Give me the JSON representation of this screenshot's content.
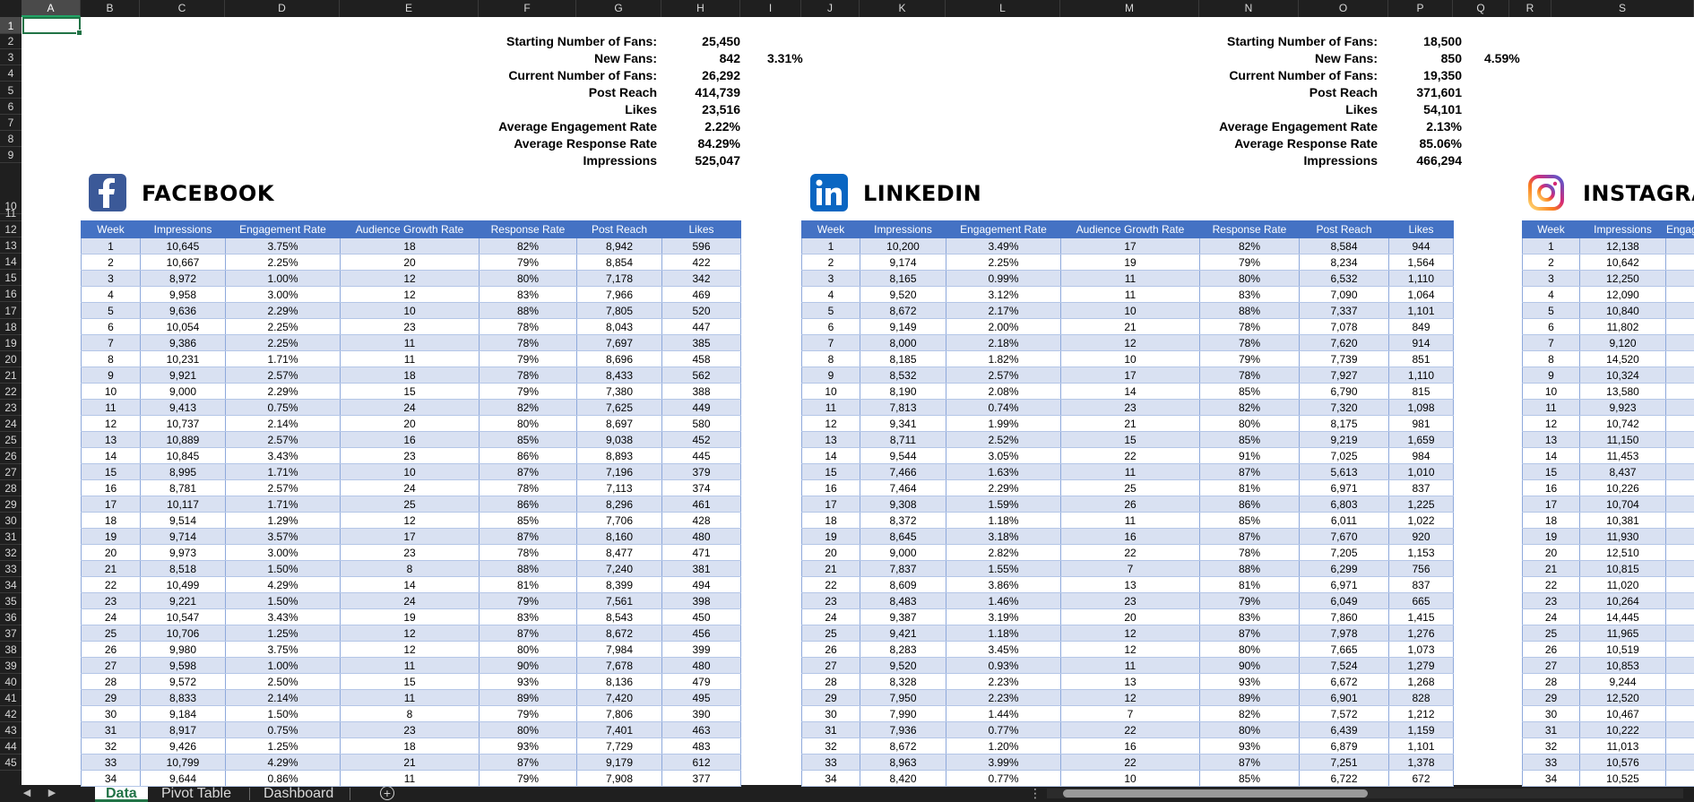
{
  "columns": [
    "A",
    "B",
    "C",
    "D",
    "E",
    "F",
    "G",
    "H",
    "I",
    "J",
    "K",
    "L",
    "M",
    "N",
    "O",
    "P",
    "Q",
    "R",
    "S"
  ],
  "rows": [
    "1",
    "2",
    "3",
    "4",
    "5",
    "6",
    "7",
    "8",
    "9",
    "10",
    "11",
    "12",
    "13",
    "14",
    "15",
    "16",
    "17",
    "18",
    "19",
    "20",
    "21",
    "22",
    "23",
    "24",
    "25",
    "26",
    "27",
    "28",
    "29",
    "30",
    "31",
    "32",
    "33",
    "34",
    "35",
    "36",
    "37",
    "38",
    "39",
    "40",
    "41",
    "42",
    "43",
    "44",
    "45"
  ],
  "summaries": [
    {
      "labels": [
        "Starting Number of Fans:",
        "New Fans:",
        "Current Number of Fans:",
        "Post Reach",
        "Likes",
        "Average Engagement Rate",
        "Average Response Rate",
        "Impressions"
      ],
      "values": [
        "25,450",
        "842",
        "26,292",
        "414,739",
        "23,516",
        "2.22%",
        "84.29%",
        "525,047"
      ],
      "growth": "3.31%"
    },
    {
      "labels": [
        "Starting Number of Fans:",
        "New Fans:",
        "Current Number of Fans:",
        "Post Reach",
        "Likes",
        "Average Engagement Rate",
        "Average Response Rate",
        "Impressions"
      ],
      "values": [
        "18,500",
        "850",
        "19,350",
        "371,601",
        "54,101",
        "2.13%",
        "85.06%",
        "466,294"
      ],
      "growth": "4.59%"
    }
  ],
  "platforms": [
    {
      "title": "FACEBOOK",
      "logo_icon": "facebook-icon",
      "logo_color": "#3b5998",
      "headers": [
        "Week",
        "Impressions",
        "Engagement Rate",
        "Audience Growth Rate",
        "Response Rate",
        "Post Reach",
        "Likes"
      ],
      "rows": [
        [
          "1",
          "10,645",
          "3.75%",
          "18",
          "82%",
          "8,942",
          "596"
        ],
        [
          "2",
          "10,667",
          "2.25%",
          "20",
          "79%",
          "8,854",
          "422"
        ],
        [
          "3",
          "8,972",
          "1.00%",
          "12",
          "80%",
          "7,178",
          "342"
        ],
        [
          "4",
          "9,958",
          "3.00%",
          "12",
          "83%",
          "7,966",
          "469"
        ],
        [
          "5",
          "9,636",
          "2.29%",
          "10",
          "88%",
          "7,805",
          "520"
        ],
        [
          "6",
          "10,054",
          "2.25%",
          "23",
          "78%",
          "8,043",
          "447"
        ],
        [
          "7",
          "9,386",
          "2.25%",
          "11",
          "78%",
          "7,697",
          "385"
        ],
        [
          "8",
          "10,231",
          "1.71%",
          "11",
          "79%",
          "8,696",
          "458"
        ],
        [
          "9",
          "9,921",
          "2.57%",
          "18",
          "78%",
          "8,433",
          "562"
        ],
        [
          "10",
          "9,000",
          "2.29%",
          "15",
          "79%",
          "7,380",
          "388"
        ],
        [
          "11",
          "9,413",
          "0.75%",
          "24",
          "82%",
          "7,625",
          "449"
        ],
        [
          "12",
          "10,737",
          "2.14%",
          "20",
          "80%",
          "8,697",
          "580"
        ],
        [
          "13",
          "10,889",
          "2.57%",
          "16",
          "85%",
          "9,038",
          "452"
        ],
        [
          "14",
          "10,845",
          "3.43%",
          "23",
          "86%",
          "8,893",
          "445"
        ],
        [
          "15",
          "8,995",
          "1.71%",
          "10",
          "87%",
          "7,196",
          "379"
        ],
        [
          "16",
          "8,781",
          "2.57%",
          "24",
          "78%",
          "7,113",
          "374"
        ],
        [
          "17",
          "10,117",
          "1.71%",
          "25",
          "86%",
          "8,296",
          "461"
        ],
        [
          "18",
          "9,514",
          "1.29%",
          "12",
          "85%",
          "7,706",
          "428"
        ],
        [
          "19",
          "9,714",
          "3.57%",
          "17",
          "87%",
          "8,160",
          "480"
        ],
        [
          "20",
          "9,973",
          "3.00%",
          "23",
          "78%",
          "8,477",
          "471"
        ],
        [
          "21",
          "8,518",
          "1.50%",
          "8",
          "88%",
          "7,240",
          "381"
        ],
        [
          "22",
          "10,499",
          "4.29%",
          "14",
          "81%",
          "8,399",
          "494"
        ],
        [
          "23",
          "9,221",
          "1.50%",
          "24",
          "79%",
          "7,561",
          "398"
        ],
        [
          "24",
          "10,547",
          "3.43%",
          "19",
          "83%",
          "8,543",
          "450"
        ],
        [
          "25",
          "10,706",
          "1.25%",
          "12",
          "87%",
          "8,672",
          "456"
        ],
        [
          "26",
          "9,980",
          "3.75%",
          "12",
          "80%",
          "7,984",
          "399"
        ],
        [
          "27",
          "9,598",
          "1.00%",
          "11",
          "90%",
          "7,678",
          "480"
        ],
        [
          "28",
          "9,572",
          "2.50%",
          "15",
          "93%",
          "8,136",
          "479"
        ],
        [
          "29",
          "8,833",
          "2.14%",
          "11",
          "89%",
          "7,420",
          "495"
        ],
        [
          "30",
          "9,184",
          "1.50%",
          "8",
          "79%",
          "7,806",
          "390"
        ],
        [
          "31",
          "8,917",
          "0.75%",
          "23",
          "80%",
          "7,401",
          "463"
        ],
        [
          "32",
          "9,426",
          "1.25%",
          "18",
          "93%",
          "7,729",
          "483"
        ],
        [
          "33",
          "10,799",
          "4.29%",
          "21",
          "87%",
          "9,179",
          "612"
        ],
        [
          "34",
          "9,644",
          "0.86%",
          "11",
          "79%",
          "7,908",
          "377"
        ]
      ]
    },
    {
      "title": "LINKEDIN",
      "logo_icon": "linkedin-icon",
      "logo_color": "#0a66c2",
      "headers": [
        "Week",
        "Impressions",
        "Engagement Rate",
        "Audience Growth Rate",
        "Response Rate",
        "Post Reach",
        "Likes"
      ],
      "rows": [
        [
          "1",
          "10,200",
          "3.49%",
          "17",
          "82%",
          "8,584",
          "944"
        ],
        [
          "2",
          "9,174",
          "2.25%",
          "19",
          "79%",
          "8,234",
          "1,564"
        ],
        [
          "3",
          "8,165",
          "0.99%",
          "11",
          "80%",
          "6,532",
          "1,110"
        ],
        [
          "4",
          "9,520",
          "3.12%",
          "11",
          "83%",
          "7,090",
          "1,064"
        ],
        [
          "5",
          "8,672",
          "2.17%",
          "10",
          "88%",
          "7,337",
          "1,101"
        ],
        [
          "6",
          "9,149",
          "2.00%",
          "21",
          "78%",
          "7,078",
          "849"
        ],
        [
          "7",
          "8,000",
          "2.18%",
          "12",
          "78%",
          "7,620",
          "914"
        ],
        [
          "8",
          "8,185",
          "1.82%",
          "10",
          "79%",
          "7,739",
          "851"
        ],
        [
          "9",
          "8,532",
          "2.57%",
          "17",
          "78%",
          "7,927",
          "1,110"
        ],
        [
          "10",
          "8,190",
          "2.08%",
          "14",
          "85%",
          "6,790",
          "815"
        ],
        [
          "11",
          "7,813",
          "0.74%",
          "23",
          "82%",
          "7,320",
          "1,098"
        ],
        [
          "12",
          "9,341",
          "1.99%",
          "21",
          "80%",
          "8,175",
          "981"
        ],
        [
          "13",
          "8,711",
          "2.52%",
          "15",
          "85%",
          "9,219",
          "1,659"
        ],
        [
          "14",
          "9,544",
          "3.05%",
          "22",
          "91%",
          "7,025",
          "984"
        ],
        [
          "15",
          "7,466",
          "1.63%",
          "11",
          "87%",
          "5,613",
          "1,010"
        ],
        [
          "16",
          "7,464",
          "2.29%",
          "25",
          "81%",
          "6,971",
          "837"
        ],
        [
          "17",
          "9,308",
          "1.59%",
          "26",
          "86%",
          "6,803",
          "1,225"
        ],
        [
          "18",
          "8,372",
          "1.18%",
          "11",
          "85%",
          "6,011",
          "1,022"
        ],
        [
          "19",
          "8,645",
          "3.18%",
          "16",
          "87%",
          "7,670",
          "920"
        ],
        [
          "20",
          "9,000",
          "2.82%",
          "22",
          "78%",
          "7,205",
          "1,153"
        ],
        [
          "21",
          "7,837",
          "1.55%",
          "7",
          "88%",
          "6,299",
          "756"
        ],
        [
          "22",
          "8,609",
          "3.86%",
          "13",
          "81%",
          "6,971",
          "837"
        ],
        [
          "23",
          "8,483",
          "1.46%",
          "23",
          "79%",
          "6,049",
          "665"
        ],
        [
          "24",
          "9,387",
          "3.19%",
          "20",
          "83%",
          "7,860",
          "1,415"
        ],
        [
          "25",
          "9,421",
          "1.18%",
          "12",
          "87%",
          "7,978",
          "1,276"
        ],
        [
          "26",
          "8,283",
          "3.45%",
          "12",
          "80%",
          "7,665",
          "1,073"
        ],
        [
          "27",
          "9,520",
          "0.93%",
          "11",
          "90%",
          "7,524",
          "1,279"
        ],
        [
          "28",
          "8,328",
          "2.23%",
          "13",
          "93%",
          "6,672",
          "1,268"
        ],
        [
          "29",
          "7,950",
          "2.23%",
          "12",
          "89%",
          "6,901",
          "828"
        ],
        [
          "30",
          "7,990",
          "1.44%",
          "7",
          "82%",
          "7,572",
          "1,212"
        ],
        [
          "31",
          "7,936",
          "0.77%",
          "22",
          "80%",
          "6,439",
          "1,159"
        ],
        [
          "32",
          "8,672",
          "1.20%",
          "16",
          "93%",
          "6,879",
          "1,101"
        ],
        [
          "33",
          "8,963",
          "3.99%",
          "22",
          "87%",
          "7,251",
          "1,378"
        ],
        [
          "34",
          "8,420",
          "0.77%",
          "10",
          "85%",
          "6,722",
          "672"
        ]
      ]
    },
    {
      "title": "INSTAGRAM",
      "logo_icon": "instagram-icon",
      "logo_color": "#d6249f",
      "headers": [
        "Week",
        "Impressions",
        "Engagement Rate"
      ],
      "rows": [
        [
          "1",
          "12,138",
          ""
        ],
        [
          "2",
          "10,642",
          ""
        ],
        [
          "3",
          "12,250",
          ""
        ],
        [
          "4",
          "12,090",
          ""
        ],
        [
          "5",
          "10,840",
          ""
        ],
        [
          "6",
          "11,802",
          ""
        ],
        [
          "7",
          "9,120",
          ""
        ],
        [
          "8",
          "14,520",
          ""
        ],
        [
          "9",
          "10,324",
          ""
        ],
        [
          "10",
          "13,580",
          ""
        ],
        [
          "11",
          "9,923",
          ""
        ],
        [
          "12",
          "10,742",
          ""
        ],
        [
          "13",
          "11,150",
          ""
        ],
        [
          "14",
          "11,453",
          ""
        ],
        [
          "15",
          "8,437",
          ""
        ],
        [
          "16",
          "10,226",
          ""
        ],
        [
          "17",
          "10,704",
          ""
        ],
        [
          "18",
          "10,381",
          ""
        ],
        [
          "19",
          "11,930",
          ""
        ],
        [
          "20",
          "12,510",
          ""
        ],
        [
          "21",
          "10,815",
          ""
        ],
        [
          "22",
          "11,020",
          ""
        ],
        [
          "23",
          "10,264",
          ""
        ],
        [
          "24",
          "14,445",
          ""
        ],
        [
          "25",
          "11,965",
          ""
        ],
        [
          "26",
          "10,519",
          ""
        ],
        [
          "27",
          "10,853",
          ""
        ],
        [
          "28",
          "9,244",
          ""
        ],
        [
          "29",
          "12,520",
          ""
        ],
        [
          "30",
          "10,467",
          ""
        ],
        [
          "31",
          "10,222",
          ""
        ],
        [
          "32",
          "11,013",
          ""
        ],
        [
          "33",
          "10,576",
          ""
        ],
        [
          "34",
          "10,525",
          ""
        ]
      ]
    }
  ],
  "sheet_tabs": [
    "Data",
    "Pivot Table",
    "Dashboard"
  ],
  "active_tab": "Data",
  "icons": {
    "prev_sheet": "chevron-left-icon",
    "next_sheet": "chevron-right-icon",
    "add_sheet": "plus-circle-icon",
    "sheet_menu": "more-vertical-icon"
  }
}
